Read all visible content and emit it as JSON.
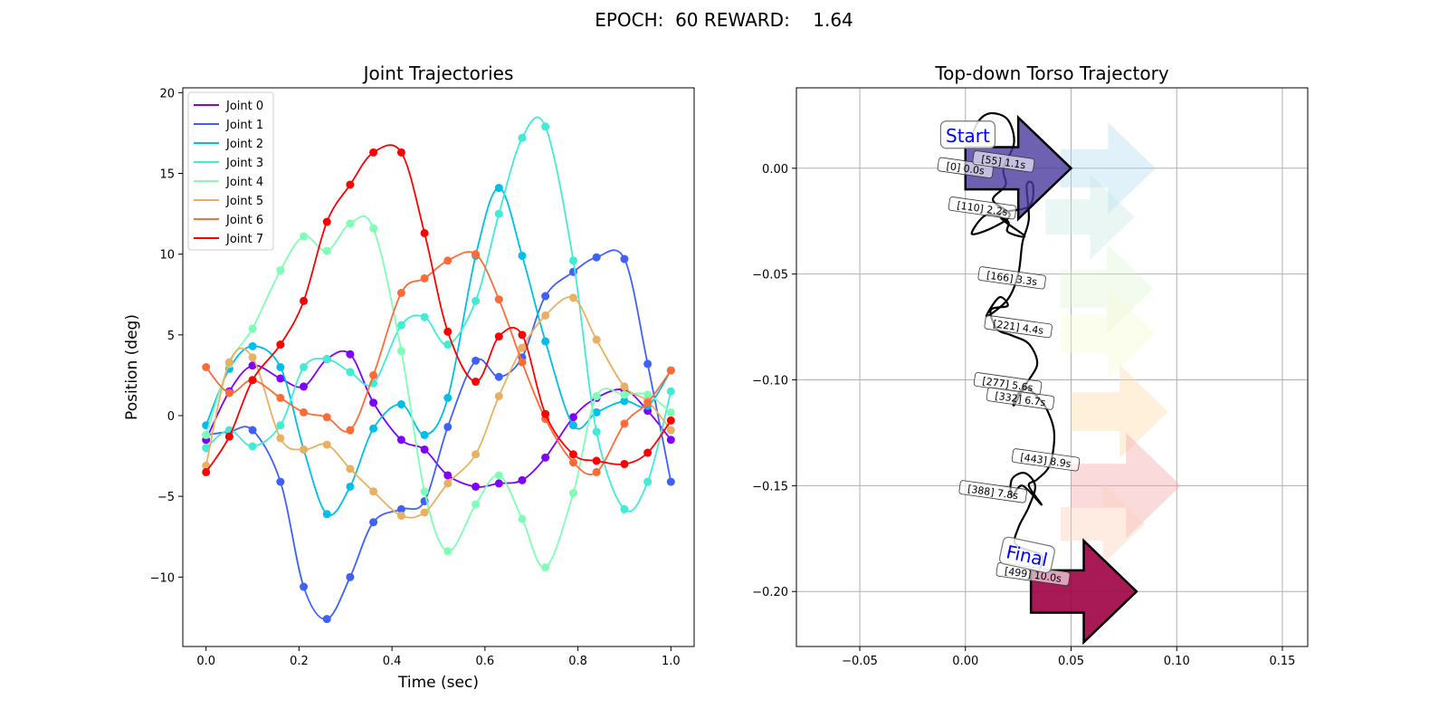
{
  "suptitle": "EPOCH:  60 REWARD:    1.64",
  "charts": [
    {
      "type": "line",
      "title": "Joint Trajectories",
      "xlabel": "Time (sec)",
      "ylabel": "Position (deg)",
      "xlim": [
        -0.05,
        1.05
      ],
      "ylim": [
        -14.3,
        20.3
      ],
      "xticks": [
        0.0,
        0.2,
        0.4,
        0.6,
        0.8,
        1.0
      ],
      "xtick_labels": [
        "0.0",
        "0.2",
        "0.4",
        "0.6",
        "0.8",
        "1.0"
      ],
      "yticks": [
        -10,
        -5,
        0,
        5,
        10,
        15,
        20
      ],
      "ytick_labels": [
        "−10",
        "−5",
        "0",
        "5",
        "10",
        "15",
        "20"
      ],
      "grid": false,
      "legend_position": "top-left",
      "x": [
        0.0,
        0.05,
        0.1,
        0.16,
        0.21,
        0.26,
        0.31,
        0.36,
        0.42,
        0.47,
        0.52,
        0.58,
        0.63,
        0.68,
        0.73,
        0.79,
        0.84,
        0.9,
        0.95,
        1.0
      ],
      "series": [
        {
          "name": "Joint 0",
          "color": "#7f00ff",
          "values": [
            -1.5,
            1.5,
            3.1,
            2.3,
            1.8,
            3.5,
            3.8,
            0.8,
            -1.5,
            -2.1,
            -3.7,
            -4.4,
            -4.2,
            -4.0,
            -2.6,
            -0.1,
            1.1,
            1.6,
            0.3,
            -1.5
          ]
        },
        {
          "name": "Joint 1",
          "color": "#3f61fa",
          "values": [
            -1.2,
            -1.0,
            -0.9,
            -4.1,
            -10.6,
            -12.6,
            -10.0,
            -6.6,
            -5.8,
            -5.3,
            -0.7,
            3.4,
            2.4,
            3.6,
            7.4,
            8.9,
            9.8,
            9.7,
            3.2,
            -4.1
          ]
        },
        {
          "name": "Joint 2",
          "color": "#00bfe7",
          "values": [
            -0.6,
            2.9,
            4.3,
            3.0,
            -2.1,
            -6.1,
            -4.4,
            -0.8,
            0.7,
            -1.2,
            1.1,
            9.9,
            14.1,
            9.9,
            4.6,
            -0.6,
            0.2,
            0.9,
            0.6,
            2.8
          ]
        },
        {
          "name": "Joint 3",
          "color": "#40ecd4",
          "values": [
            -2.0,
            -0.9,
            -1.9,
            -0.6,
            3.0,
            3.5,
            2.7,
            2.0,
            5.6,
            6.1,
            4.4,
            7.1,
            12.5,
            17.2,
            17.9,
            9.6,
            -1.0,
            -5.8,
            -4.1,
            1.5
          ]
        },
        {
          "name": "Joint 4",
          "color": "#7ffeb5",
          "values": [
            -1.2,
            3.2,
            5.4,
            9.0,
            11.1,
            10.2,
            11.9,
            11.6,
            4.0,
            -4.7,
            -8.4,
            -5.5,
            -3.7,
            -6.4,
            -9.4,
            -4.8,
            1.2,
            1.3,
            1.3,
            0.2
          ]
        },
        {
          "name": "Joint 5",
          "color": "#eab061",
          "values": [
            -3.1,
            3.3,
            3.6,
            -1.4,
            -2.1,
            -1.8,
            -3.3,
            -4.7,
            -6.2,
            -6.0,
            -4.2,
            -2.4,
            1.2,
            4.2,
            6.2,
            7.3,
            4.7,
            1.8,
            0.9,
            -0.9
          ]
        },
        {
          "name": "Joint 6",
          "color": "#ff6b37",
          "values": [
            3.0,
            1.4,
            2.2,
            1.1,
            0.2,
            -0.1,
            -0.9,
            2.5,
            7.6,
            8.5,
            9.6,
            10.0,
            7.2,
            3.3,
            -0.2,
            -2.9,
            -3.5,
            -0.5,
            0.8,
            2.8
          ]
        },
        {
          "name": "Joint 7",
          "color": "#ff0000",
          "values": [
            -3.5,
            -1.3,
            2.2,
            4.4,
            7.1,
            12.0,
            14.3,
            16.3,
            16.3,
            11.3,
            5.2,
            2.1,
            4.9,
            5.0,
            0.1,
            -2.4,
            -2.8,
            -3.0,
            -2.3,
            -0.3
          ]
        }
      ]
    },
    {
      "type": "scatter",
      "title": "Top-down Torso Trajectory",
      "xlim": [
        -0.08,
        0.162
      ],
      "ylim": [
        -0.226,
        0.038
      ],
      "xticks": [
        -0.05,
        0.0,
        0.05,
        0.1,
        0.15
      ],
      "xtick_labels": [
        "−0.05",
        "0.00",
        "0.05",
        "0.10",
        "0.15"
      ],
      "yticks": [
        0.0,
        -0.05,
        -0.1,
        -0.15,
        -0.2
      ],
      "ytick_labels": [
        "0.00",
        "−0.05",
        "−0.10",
        "−0.15",
        "−0.20"
      ],
      "grid": true,
      "start_label": "Start",
      "final_label": "Final",
      "path": [
        [
          0.002,
          0.012
        ],
        [
          0.006,
          0.022
        ],
        [
          0.012,
          0.026
        ],
        [
          0.02,
          0.023
        ],
        [
          0.023,
          0.012
        ],
        [
          0.018,
          0.0
        ],
        [
          0.019,
          -0.008
        ],
        [
          0.013,
          -0.015
        ],
        [
          0.021,
          -0.022
        ],
        [
          0.013,
          -0.028
        ],
        [
          0.003,
          -0.031
        ],
        [
          0.01,
          -0.022
        ],
        [
          0.02,
          -0.025
        ],
        [
          0.02,
          -0.03
        ],
        [
          0.028,
          -0.032
        ],
        [
          0.016,
          -0.022
        ],
        [
          0.03,
          -0.018
        ],
        [
          0.032,
          -0.008
        ],
        [
          0.029,
          -0.008
        ],
        [
          0.03,
          -0.024
        ],
        [
          0.027,
          -0.035
        ],
        [
          0.025,
          -0.05
        ],
        [
          0.02,
          -0.062
        ],
        [
          0.01,
          -0.07
        ],
        [
          0.016,
          -0.061
        ],
        [
          0.02,
          -0.065
        ],
        [
          0.012,
          -0.067
        ],
        [
          0.015,
          -0.076
        ],
        [
          0.022,
          -0.079
        ],
        [
          0.03,
          -0.083
        ],
        [
          0.034,
          -0.092
        ],
        [
          0.03,
          -0.1
        ],
        [
          0.024,
          -0.108
        ],
        [
          0.023,
          -0.112
        ],
        [
          0.028,
          -0.104
        ],
        [
          0.032,
          -0.106
        ],
        [
          0.038,
          -0.113
        ],
        [
          0.042,
          -0.125
        ],
        [
          0.04,
          -0.14
        ],
        [
          0.034,
          -0.147
        ],
        [
          0.03,
          -0.15
        ],
        [
          0.036,
          -0.159
        ],
        [
          0.027,
          -0.15
        ],
        [
          0.022,
          -0.155
        ],
        [
          0.022,
          -0.147
        ],
        [
          0.028,
          -0.144
        ],
        [
          0.033,
          -0.15
        ],
        [
          0.03,
          -0.16
        ],
        [
          0.025,
          -0.17
        ],
        [
          0.024,
          -0.178
        ],
        [
          0.036,
          -0.183
        ],
        [
          0.035,
          -0.19
        ]
      ],
      "markers": [
        {
          "label": "[0] 0.0s",
          "x": 0.0,
          "y": 0.0
        },
        {
          "label": "[55] 1.1s",
          "x": 0.018,
          "y": 0.003
        },
        {
          "label": "[110] 2.2s",
          "x": 0.008,
          "y": -0.019
        },
        {
          "label": "[166] 3.3s",
          "x": 0.022,
          "y": -0.052
        },
        {
          "label": "[221] 4.4s",
          "x": 0.025,
          "y": -0.075
        },
        {
          "label": "[277] 5.6s",
          "x": 0.02,
          "y": -0.102
        },
        {
          "label": "[332] 6.7s",
          "x": 0.026,
          "y": -0.109
        },
        {
          "label": "[443] 8.9s",
          "x": 0.038,
          "y": -0.138
        },
        {
          "label": "[388] 7.8s",
          "x": 0.013,
          "y": -0.153
        },
        {
          "label": "[499] 10.0s",
          "x": 0.032,
          "y": -0.192
        }
      ],
      "arrows": [
        {
          "x": 0.0,
          "y": 0.0,
          "dx": 0.05,
          "color": "#4a3a9e",
          "opacity": 0.8,
          "outline": true
        },
        {
          "x": 0.045,
          "y": 0.0,
          "dx": 0.045,
          "color": "#a8d8ee",
          "opacity": 0.35,
          "outline": false
        },
        {
          "x": 0.038,
          "y": -0.023,
          "dx": 0.042,
          "color": "#bfe6df",
          "opacity": 0.35,
          "outline": false
        },
        {
          "x": 0.045,
          "y": -0.057,
          "dx": 0.044,
          "color": "#def2cf",
          "opacity": 0.35,
          "outline": false
        },
        {
          "x": 0.045,
          "y": -0.078,
          "dx": 0.045,
          "color": "#f6fad1",
          "opacity": 0.4,
          "outline": false
        },
        {
          "x": 0.05,
          "y": -0.115,
          "dx": 0.046,
          "color": "#fdd9a6",
          "opacity": 0.4,
          "outline": false
        },
        {
          "x": 0.05,
          "y": -0.15,
          "dx": 0.052,
          "color": "#f5a3a8",
          "opacity": 0.4,
          "outline": false
        },
        {
          "x": 0.045,
          "y": -0.168,
          "dx": 0.04,
          "color": "#fcd0b8",
          "opacity": 0.4,
          "outline": false
        },
        {
          "x": 0.031,
          "y": -0.2,
          "dx": 0.05,
          "color": "#9e0142",
          "opacity": 0.9,
          "outline": true
        }
      ]
    }
  ]
}
